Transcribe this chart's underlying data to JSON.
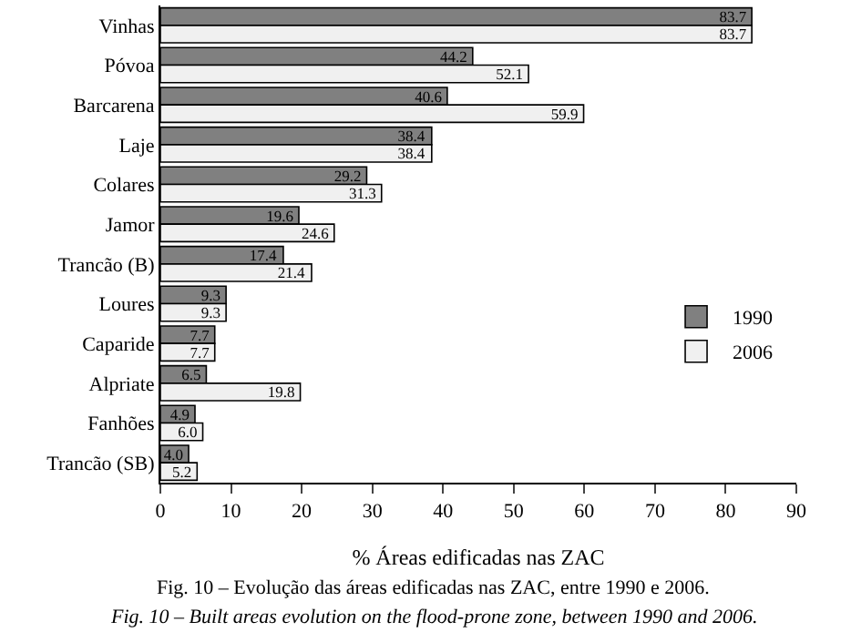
{
  "chart_data": {
    "type": "bar",
    "orientation": "horizontal",
    "xlabel": "% Áreas edificadas nas ZAC",
    "categories": [
      "Vinhas",
      "Póvoa",
      "Barcarena",
      "Laje",
      "Colares",
      "Jamor",
      "Trancão (B)",
      "Loures",
      "Caparide",
      "Alpriate",
      "Fanhões",
      "Trancão (SB)"
    ],
    "series": [
      {
        "name": "1990",
        "color": "#808080",
        "values": [
          83.7,
          44.2,
          40.6,
          38.4,
          29.2,
          19.6,
          17.4,
          9.3,
          7.7,
          6.5,
          4.9,
          4.0
        ],
        "value_labels": [
          "83.7",
          "44.2",
          "40.6",
          "38.4",
          "29.2",
          "19.6",
          "17.4",
          "9.3",
          "7.7",
          "6.5",
          "4.9",
          "4.0"
        ]
      },
      {
        "name": "2006",
        "color": "#f0f0f0",
        "values": [
          83.7,
          52.1,
          59.9,
          38.4,
          31.3,
          24.6,
          21.4,
          9.3,
          7.7,
          19.8,
          6.0,
          5.2
        ],
        "value_labels": [
          "83.7",
          "52.1",
          "59.9",
          "38.4",
          "31.3",
          "24.6",
          "21.4",
          "9.3",
          "7.7",
          "19.8",
          "6.0",
          "5.2"
        ]
      }
    ],
    "xlim": [
      0,
      90
    ],
    "xticks": [
      0,
      10,
      20,
      30,
      40,
      50,
      60,
      70,
      80,
      90
    ],
    "legend": "bottom right",
    "annotations": [
      "Fig. 10 – Evolução das áreas edificadas nas ZAC, entre 1990 e 2006.",
      "Fig. 10 – Built areas evolution on the flood-prone zone, between 1990 and 2006."
    ]
  }
}
